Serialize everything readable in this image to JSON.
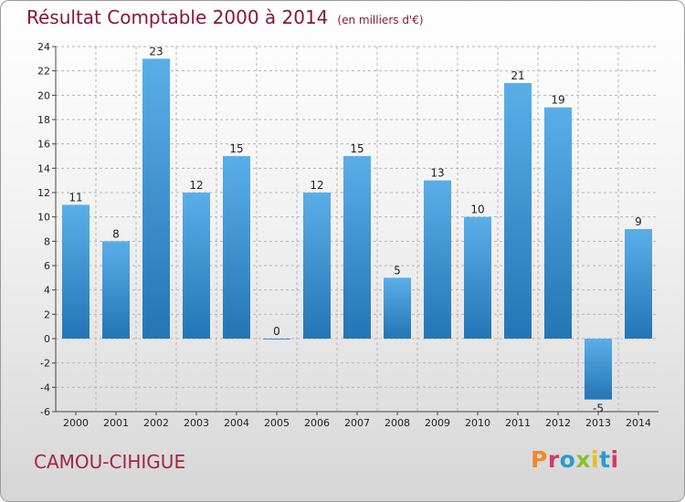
{
  "title": "Résultat Comptable 2000 à 2014",
  "subtitle": "(en milliers d'€)",
  "commune": "CAMOU-CIHIGUE",
  "logo_text": "Proxiti",
  "logo_colors": [
    "#f0892a",
    "#d23b6a",
    "#2a9ad0",
    "#8cbf2e",
    "#e2c21b",
    "#2a9ad0",
    "#d23b6a"
  ],
  "colors": {
    "bar_top": "#5aaee8",
    "bar_bottom": "#2475b5",
    "title": "#8a1538",
    "grid": "#b5b5b5"
  },
  "chart_data": {
    "type": "bar",
    "categories": [
      "2000",
      "2001",
      "2002",
      "2003",
      "2004",
      "2005",
      "2006",
      "2007",
      "2008",
      "2009",
      "2010",
      "2011",
      "2012",
      "2013",
      "2014"
    ],
    "values": [
      11,
      8,
      23,
      12,
      15,
      0,
      12,
      15,
      5,
      13,
      10,
      21,
      19,
      -5,
      9
    ],
    "ylim": [
      -6,
      24
    ],
    "yticks": [
      -6,
      -4,
      -2,
      0,
      2,
      4,
      6,
      8,
      10,
      12,
      14,
      16,
      18,
      20,
      22,
      24
    ],
    "grid": true,
    "title": "Résultat Comptable 2000 à 2014",
    "xlabel": "",
    "ylabel": ""
  }
}
